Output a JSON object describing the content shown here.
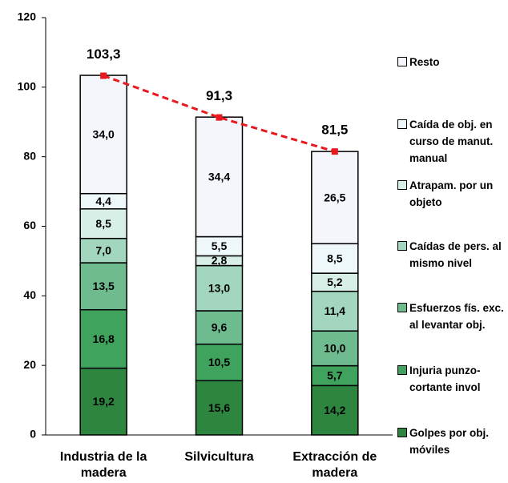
{
  "chart_data": {
    "type": "bar",
    "categories": [
      "Industria de la madera",
      "Silvicultura",
      "Extracción de madera"
    ],
    "ylim": [
      0,
      120
    ],
    "yticks": [
      0,
      20,
      40,
      60,
      80,
      100,
      120
    ],
    "stacked": true,
    "series": [
      {
        "name": "Golpes por obj. móviles",
        "color": "#2e8540",
        "values": [
          19.2,
          15.6,
          14.2
        ],
        "value_labels": [
          "19,2",
          "15,6",
          "14,2"
        ]
      },
      {
        "name": "Injuria punzo-cortante invol",
        "color": "#3fa35e",
        "values": [
          16.8,
          10.5,
          5.7
        ],
        "value_labels": [
          "16,8",
          "10,5",
          "5,7"
        ]
      },
      {
        "name": "Esfuerzos fís. exc. al levantar obj.",
        "color": "#6dbb8f",
        "values": [
          13.5,
          9.6,
          10.0
        ],
        "value_labels": [
          "13,5",
          "9,6",
          "10,0"
        ]
      },
      {
        "name": "Caídas de pers. al mismo nivel",
        "color": "#a3d6bf",
        "values": [
          7.0,
          13.0,
          11.4
        ],
        "value_labels": [
          "7,0",
          "13,0",
          "11,4"
        ]
      },
      {
        "name": "Atrapam. por un objeto",
        "color": "#d8efe7",
        "values": [
          8.5,
          2.8,
          5.2
        ],
        "value_labels": [
          "8,5",
          "2,8",
          "5,2"
        ]
      },
      {
        "name": "Caída de obj. en curso de manut. manual",
        "color": "#eef7f9",
        "values": [
          4.4,
          5.5,
          8.5
        ],
        "value_labels": [
          "4,4",
          "5,5",
          "8,5"
        ]
      },
      {
        "name": "Resto",
        "color": "#f4f6fc",
        "values": [
          34.0,
          34.4,
          26.5
        ],
        "value_labels": [
          "34,0",
          "34,4",
          "26,5"
        ]
      }
    ],
    "totals": {
      "color": "#e8191e",
      "values": [
        103.3,
        91.3,
        81.5
      ],
      "value_labels": [
        "103,3",
        "91,3",
        "81,5"
      ]
    }
  }
}
